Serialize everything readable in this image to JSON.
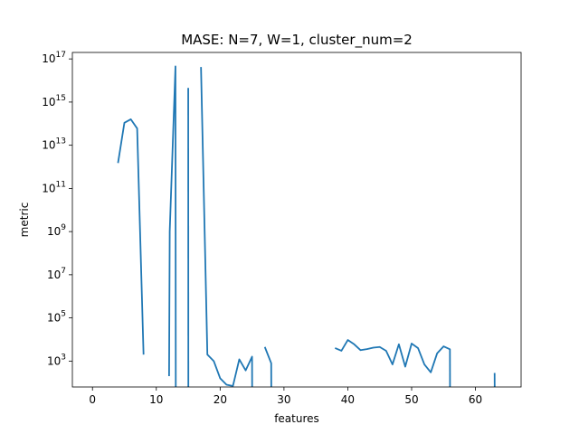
{
  "chart_data": {
    "type": "line",
    "title": "MASE: N=7, W=1, cluster_num=2",
    "xlabel": "features",
    "ylabel": "metric",
    "xlim": [
      -3.15,
      67.15
    ],
    "ylim_log10": [
      1.8,
      17.3
    ],
    "yscale": "log",
    "grid": false,
    "color": "#1f77b4",
    "x_ticks": [
      0,
      10,
      20,
      30,
      40,
      50,
      60
    ],
    "y_ticks": [
      {
        "base": "10",
        "exp": "3"
      },
      {
        "base": "10",
        "exp": "5"
      },
      {
        "base": "10",
        "exp": "7"
      },
      {
        "base": "10",
        "exp": "9"
      },
      {
        "base": "10",
        "exp": "11"
      },
      {
        "base": "10",
        "exp": "13"
      },
      {
        "base": "10",
        "exp": "15"
      },
      {
        "base": "10",
        "exp": "17"
      }
    ],
    "series": [
      {
        "segments": [
          [
            [
              4,
              1500000000000.0
            ],
            [
              5,
              110000000000000.0
            ],
            [
              6,
              160000000000000.0
            ],
            [
              7,
              60000000000000.0
            ],
            [
              8,
              2000.0
            ]
          ],
          [
            [
              12,
              200.0
            ],
            [
              12.1,
              1000000000.0
            ],
            [
              13,
              4.5e+16
            ],
            [
              13.05,
              10.0
            ]
          ],
          [
            [
              15,
              4500000000000000.0
            ],
            [
              15.02,
              10.0
            ]
          ],
          [
            [
              17,
              4.2e+16
            ],
            [
              18,
              2000.0
            ],
            [
              19,
              1000.0
            ],
            [
              20,
              160.0
            ],
            [
              21,
              80.0
            ],
            [
              22,
              70.0
            ],
            [
              23,
              1200.0
            ],
            [
              24,
              370.0
            ],
            [
              25,
              1600.0
            ],
            [
              25.02,
              10.0
            ]
          ],
          [
            [
              27,
              4500.0
            ],
            [
              28,
              800.0
            ],
            [
              28.02,
              10.0
            ]
          ],
          [
            [
              38,
              4000.0
            ],
            [
              39,
              3000.0
            ],
            [
              40,
              9500.0
            ],
            [
              41,
              6000.0
            ],
            [
              42,
              3200.0
            ],
            [
              43,
              3600.0
            ],
            [
              44,
              4200.0
            ],
            [
              45,
              4500.0
            ],
            [
              46,
              3000.0
            ],
            [
              47,
              700.0
            ],
            [
              48,
              6000.0
            ],
            [
              49,
              550.0
            ],
            [
              50,
              6500.0
            ],
            [
              51,
              4000.0
            ],
            [
              52,
              700.0
            ],
            [
              53,
              300.0
            ],
            [
              54,
              2300.0
            ],
            [
              55,
              4800.0
            ],
            [
              56,
              3500.0
            ],
            [
              56.02,
              10.0
            ]
          ],
          [
            [
              63,
              280.0
            ],
            [
              63.02,
              10.0
            ]
          ]
        ],
        "drop_lines": [
          4,
          8,
          12,
          15,
          25,
          27,
          28,
          38,
          56,
          63
        ]
      }
    ]
  }
}
